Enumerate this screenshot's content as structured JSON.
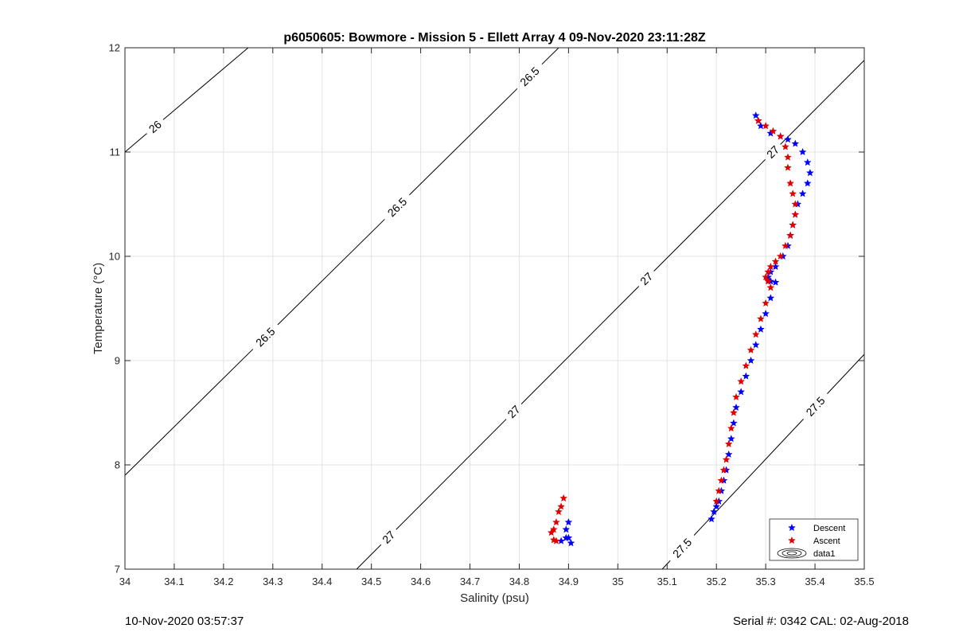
{
  "chart_data": {
    "type": "scatter",
    "title": "p6050605: Bowmore - Mission 5 - Ellett Array 4 09-Nov-2020 23:11:28Z",
    "xlabel": "Salinity (psu)",
    "ylabel": "Temperature (°C)",
    "xlim": [
      34,
      35.5
    ],
    "ylim": [
      7,
      12
    ],
    "x_ticks": [
      "34",
      "34.1",
      "34.2",
      "34.3",
      "34.4",
      "34.5",
      "34.6",
      "34.7",
      "34.8",
      "34.9",
      "35",
      "35.1",
      "35.2",
      "35.3",
      "35.4",
      "35.5"
    ],
    "y_ticks": [
      "7",
      "8",
      "9",
      "10",
      "11",
      "12"
    ],
    "grid": true,
    "legend_position": "bottom-right",
    "legend": [
      "Descent",
      "Ascent",
      "data1"
    ],
    "colors": {
      "descent": "#0000ff",
      "ascent": "#e00000",
      "contour": "#000000",
      "grid": "#e3e3e3"
    },
    "contours": [
      {
        "label": "26",
        "points": [
          [
            34.0,
            11.0
          ],
          [
            34.25,
            12.0
          ]
        ],
        "label_positions": [
          [
            34.06,
            11.25
          ]
        ]
      },
      {
        "label": "26.5",
        "points": [
          [
            34.0,
            7.9
          ],
          [
            34.88,
            12.0
          ]
        ],
        "label_positions": [
          [
            34.28,
            9.25
          ],
          [
            34.54,
            10.53
          ],
          [
            34.82,
            11.73
          ]
        ]
      },
      {
        "label": "27",
        "points": [
          [
            34.47,
            7.0
          ],
          [
            35.5,
            11.88
          ]
        ],
        "label_positions": [
          [
            34.53,
            7.33
          ],
          [
            34.77,
            8.6
          ],
          [
            35.04,
            9.87
          ],
          [
            35.3,
            11.07
          ]
        ]
      },
      {
        "label": "27.5",
        "points": [
          [
            35.09,
            7.0
          ],
          [
            35.5,
            9.06
          ]
        ],
        "label_positions": [
          [
            35.12,
            7.25
          ],
          [
            35.41,
            8.52
          ]
        ]
      }
    ],
    "series": [
      {
        "name": "Descent",
        "marker": "pentagram",
        "x": [
          35.28,
          35.285,
          35.29,
          35.31,
          35.33,
          35.345,
          35.36,
          35.375,
          35.385,
          35.39,
          35.385,
          35.375,
          35.365,
          35.36,
          35.355,
          35.35,
          35.345,
          35.335,
          35.32,
          35.31,
          35.305,
          35.305,
          35.31,
          35.32,
          35.31,
          35.3,
          35.29,
          35.28,
          35.27,
          35.26,
          35.25,
          35.24,
          35.235,
          35.23,
          35.225,
          35.22,
          35.215,
          35.21,
          35.205,
          35.2,
          35.195,
          35.19,
          34.9,
          34.895,
          34.9,
          34.905,
          34.895,
          34.885
        ],
        "y": [
          11.35,
          11.3,
          11.25,
          11.18,
          11.15,
          11.12,
          11.08,
          11.0,
          10.9,
          10.8,
          10.7,
          10.6,
          10.5,
          10.4,
          10.3,
          10.2,
          10.1,
          10.0,
          9.9,
          9.85,
          9.8,
          9.77,
          9.76,
          9.75,
          9.6,
          9.45,
          9.3,
          9.15,
          9.0,
          8.85,
          8.7,
          8.55,
          8.4,
          8.25,
          8.1,
          7.95,
          7.85,
          7.75,
          7.65,
          7.6,
          7.55,
          7.48,
          7.45,
          7.38,
          7.3,
          7.25,
          7.3,
          7.27
        ]
      },
      {
        "name": "Ascent",
        "marker": "pentagram",
        "x": [
          35.285,
          35.3,
          35.315,
          35.33,
          35.34,
          35.345,
          35.345,
          35.35,
          35.355,
          35.36,
          35.36,
          35.355,
          35.35,
          35.34,
          35.33,
          35.32,
          35.31,
          35.305,
          35.3,
          35.305,
          35.31,
          35.3,
          35.29,
          35.28,
          35.27,
          35.26,
          35.25,
          35.24,
          35.235,
          35.23,
          35.225,
          35.22,
          35.215,
          35.21,
          35.205,
          35.2,
          34.89,
          34.885,
          34.88,
          34.875,
          34.87,
          34.865,
          34.87,
          34.875
        ],
        "y": [
          11.3,
          11.25,
          11.2,
          11.15,
          11.05,
          10.95,
          10.85,
          10.7,
          10.6,
          10.5,
          10.4,
          10.3,
          10.2,
          10.1,
          10.0,
          9.95,
          9.9,
          9.85,
          9.8,
          9.76,
          9.7,
          9.55,
          9.4,
          9.25,
          9.1,
          8.95,
          8.8,
          8.65,
          8.5,
          8.35,
          8.2,
          8.05,
          7.95,
          7.85,
          7.75,
          7.65,
          7.68,
          7.6,
          7.55,
          7.45,
          7.38,
          7.35,
          7.28,
          7.27
        ]
      }
    ]
  },
  "footer": {
    "left": "10-Nov-2020 03:57:37",
    "right": "Serial #: 0342  CAL: 02-Aug-2018"
  }
}
